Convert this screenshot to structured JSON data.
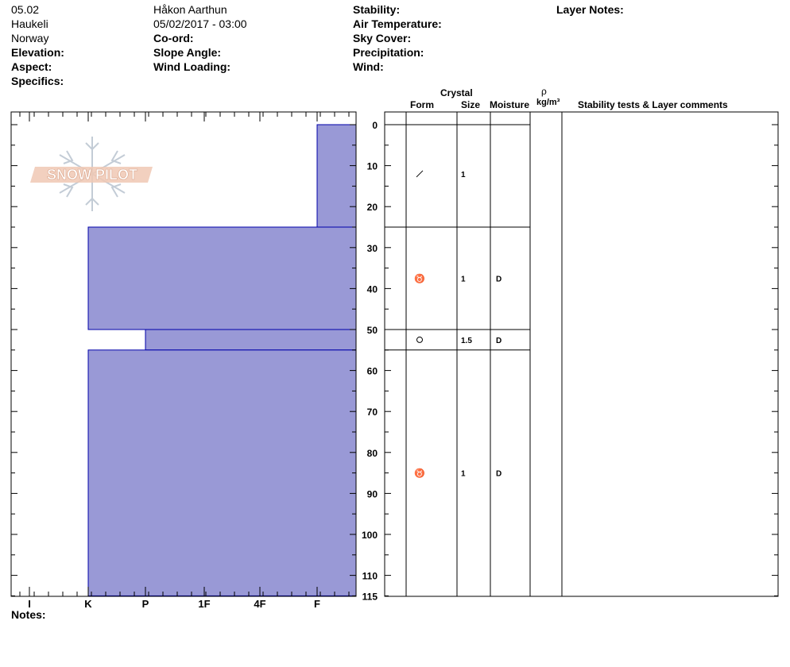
{
  "header": {
    "col1": [
      "05.02",
      "Haukeli",
      "Norway",
      "Elevation:",
      "Aspect:",
      "Specifics:"
    ],
    "col2": [
      "Håkon Aarthun",
      "05/02/2017 - 03:00",
      "Co-ord:",
      "Slope Angle:",
      "Wind Loading:"
    ],
    "col3": [
      "Stability:",
      "Air Temperature:",
      "Sky Cover:",
      "Precipitation:",
      "Wind:"
    ],
    "col4": [
      "Layer Notes:"
    ]
  },
  "logo": {
    "text": "SNOW PILOT"
  },
  "table_headers": {
    "crystal": "Crystal",
    "form": "Form",
    "size": "Size",
    "moisture": "Moisture",
    "rho": "ρ",
    "density_unit": "kg/m³",
    "comments": "Stability tests & Layer comments"
  },
  "notes_label": "Notes:",
  "colors": {
    "fill": "#9999d6",
    "edge": "#0000aa"
  },
  "chart_data": {
    "type": "bar",
    "orientation": "horizontal-profile",
    "hardness_scale": [
      "I",
      "K",
      "P",
      "1F",
      "4F",
      "F"
    ],
    "depth_ticks": [
      0,
      10,
      20,
      30,
      40,
      50,
      60,
      70,
      80,
      90,
      100,
      110,
      115
    ],
    "ylim": [
      0,
      115
    ],
    "layers": [
      {
        "top": 0,
        "bottom": 25,
        "hardness": "F",
        "form": "/",
        "size": "1",
        "moisture": ""
      },
      {
        "top": 25,
        "bottom": 50,
        "hardness": "K",
        "form": "♉",
        "size": "1",
        "moisture": "D"
      },
      {
        "top": 50,
        "bottom": 55,
        "hardness": "P",
        "form": "O",
        "size": "1.5",
        "moisture": "D"
      },
      {
        "top": 55,
        "bottom": 115,
        "hardness": "K",
        "form": "♉",
        "size": "1",
        "moisture": "D"
      }
    ]
  }
}
